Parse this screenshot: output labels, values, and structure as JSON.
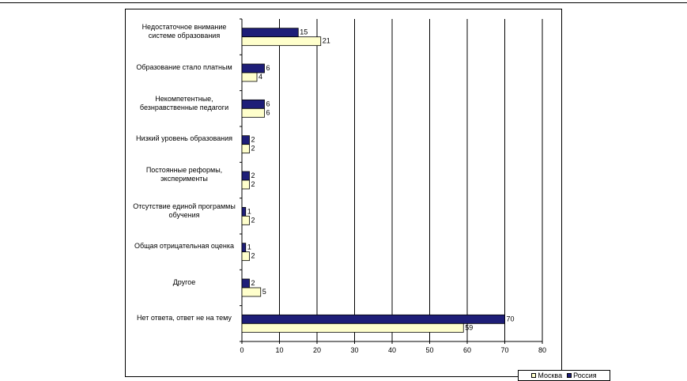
{
  "chart_data": {
    "type": "bar",
    "orientation": "horizontal",
    "categories": [
      "Недостаточное внимание системе образования",
      "Образование стало платным",
      "Некомпетентные, безнравственные педагоги",
      "Низкий уровень образования",
      "Постоянные реформы, эксперименты",
      "Отсутствие единой программы обучения",
      "Общая отрицательная оценка",
      "Другое",
      "Нет ответа, ответ не на тему"
    ],
    "series": [
      {
        "name": "Россия",
        "color": "#1e1e78",
        "values": [
          15,
          6,
          6,
          2,
          2,
          1,
          1,
          2,
          70
        ]
      },
      {
        "name": "Москва",
        "color": "#ffffcc",
        "values": [
          21,
          4,
          6,
          2,
          2,
          2,
          2,
          5,
          59
        ]
      }
    ],
    "legend_order": [
      "Москва",
      "Россия"
    ],
    "xlim": [
      0,
      80
    ],
    "xticks": [
      0,
      10,
      20,
      30,
      40,
      50,
      60,
      70,
      80
    ],
    "grid": "vertical",
    "legend_position": "bottom-right",
    "title": "",
    "xlabel": "",
    "ylabel": ""
  }
}
